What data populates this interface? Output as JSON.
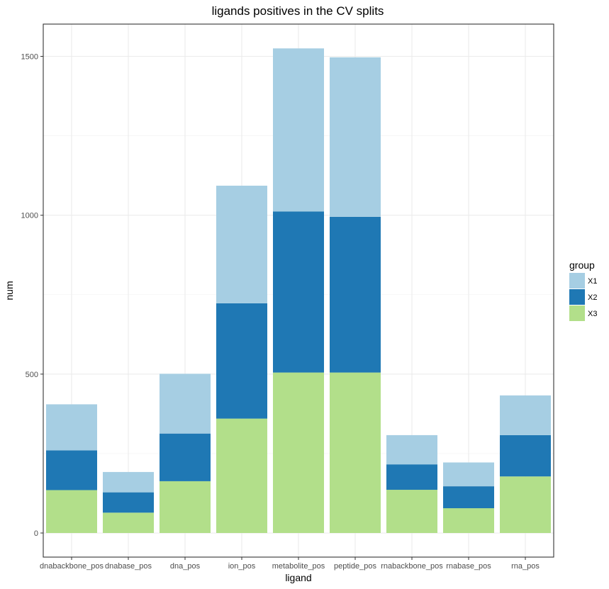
{
  "chart_data": {
    "type": "bar",
    "stacked": true,
    "title": "ligands positives in the CV splits",
    "xlabel": "ligand",
    "ylabel": "num",
    "categories": [
      "dnabackbone_pos",
      "dnabase_pos",
      "dna_pos",
      "ion_pos",
      "metabolite_pos",
      "peptide_pos",
      "rnabackbone_pos",
      "rnabase_pos",
      "rna_pos"
    ],
    "series": [
      {
        "name": "X3",
        "color": "#b2df8a",
        "values": [
          135,
          64,
          163,
          360,
          505,
          505,
          136,
          78,
          178
        ]
      },
      {
        "name": "X2",
        "color": "#1f78b4",
        "values": [
          125,
          64,
          150,
          363,
          507,
          490,
          80,
          69,
          130
        ]
      },
      {
        "name": "X1",
        "color": "#a6cee3",
        "values": [
          145,
          64,
          188,
          370,
          513,
          502,
          92,
          75,
          125
        ]
      }
    ],
    "ylim": [
      0,
      1590
    ],
    "yticks": [
      0,
      500,
      1000,
      1500
    ],
    "grid": true,
    "legend": {
      "title": "group",
      "position": "right",
      "entries": [
        "X1",
        "X2",
        "X3"
      ]
    }
  }
}
